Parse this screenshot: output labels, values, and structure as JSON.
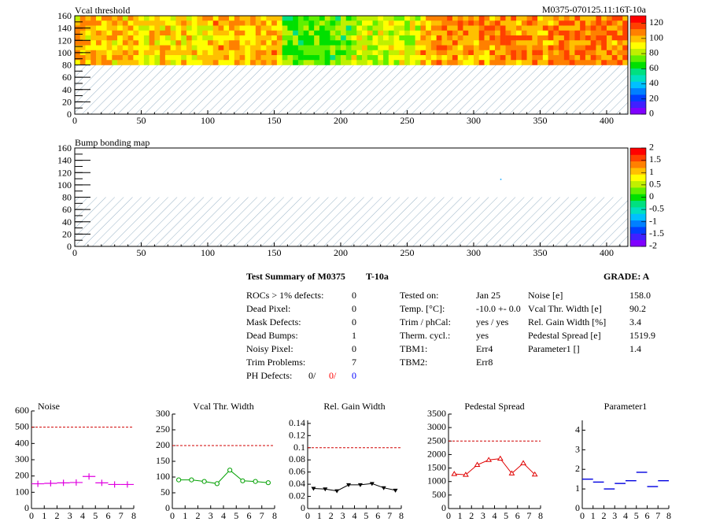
{
  "header_id": "M0375-070125.11:16T-10a",
  "maps": [
    {
      "title": "Vcal threshold",
      "x_ticks": [
        "0",
        "50",
        "100",
        "150",
        "200",
        "250",
        "300",
        "350",
        "400"
      ],
      "y_ticks": [
        "0",
        "20",
        "40",
        "60",
        "80",
        "100",
        "120",
        "140",
        "160"
      ],
      "palette_ticks": [
        "0",
        "20",
        "40",
        "60",
        "80",
        "100",
        "120"
      ],
      "palette_range": [
        0,
        130
      ],
      "roc_means": [
        98,
        94,
        100,
        72,
        86,
        104,
        106,
        108
      ],
      "xlim": [
        0,
        416
      ],
      "ylim": [
        0,
        160
      ]
    },
    {
      "title": "Bump bonding map",
      "x_ticks": [
        "0",
        "50",
        "100",
        "150",
        "200",
        "250",
        "300",
        "350",
        "400"
      ],
      "y_ticks": [
        "0",
        "20",
        "40",
        "60",
        "80",
        "100",
        "120",
        "140",
        "160"
      ],
      "palette_ticks": [
        "-2",
        "-1.5",
        "-1",
        "-0.5",
        "0",
        "0.5",
        "1",
        "1.5",
        "2"
      ],
      "palette_range": [
        -2,
        2
      ],
      "xlim": [
        0,
        416
      ],
      "ylim": [
        0,
        160
      ]
    }
  ],
  "summary": {
    "title": "Test Summary of M0375",
    "temp_label": "T-10a",
    "grade_label": "GRADE:  A",
    "left": [
      {
        "label": "ROCs > 1% defects:",
        "value": "0"
      },
      {
        "label": "Dead Pixel:",
        "value": "0"
      },
      {
        "label": "Mask Defects:",
        "value": "0"
      },
      {
        "label": "Dead Bumps:",
        "value": "1"
      },
      {
        "label": "Noisy Pixel:",
        "value": "0"
      },
      {
        "label": "Trim Problems:",
        "value": "7"
      }
    ],
    "ph_label": "PH Defects:",
    "ph_values": [
      "0/",
      "0/",
      "0"
    ],
    "ph_colors": [
      "#000000",
      "#ff0000",
      "#0000ff"
    ],
    "middle": [
      {
        "label": "Tested on:",
        "value": "Jan 25"
      },
      {
        "label": "Temp. [°C]:",
        "value": "-10.0 +- 0.0"
      },
      {
        "label": "Trim / phCal:",
        "value": "yes / yes"
      },
      {
        "label": "Therm. cycl.:",
        "value": "yes"
      },
      {
        "label": "TBM1:",
        "value": "Err4"
      },
      {
        "label": "TBM2:",
        "value": "Err8"
      }
    ],
    "right": [
      {
        "label": "Noise [e]",
        "value": "158.0"
      },
      {
        "label": "Vcal Thr. Width [e]",
        "value": "90.2"
      },
      {
        "label": "Rel. Gain Width [%]",
        "value": "3.4"
      },
      {
        "label": "Pedestal Spread [e]",
        "value": "1519.9"
      },
      {
        "label": "Parameter1 []",
        "value": "1.4"
      }
    ]
  },
  "chart_data": [
    {
      "type": "scatter",
      "title": "Noise",
      "color": "#e000e0",
      "marker": "cross",
      "x": [
        0.5,
        1.5,
        2.5,
        3.5,
        4.5,
        5.5,
        6.5,
        7.5
      ],
      "values": [
        152,
        155,
        158,
        160,
        197,
        158,
        148,
        148
      ],
      "ylim": [
        0,
        600
      ],
      "y_ticks": [
        "0",
        "100",
        "200",
        "300",
        "400",
        "500",
        "600"
      ],
      "x_ticks": [
        "0",
        "1",
        "2",
        "3",
        "4",
        "5",
        "6",
        "7",
        "8"
      ],
      "threshold": 500,
      "connect": false
    },
    {
      "type": "line",
      "title": "Vcal Thr. Width",
      "color": "#00a000",
      "marker": "circle",
      "x": [
        0.5,
        1.5,
        2.5,
        3.5,
        4.5,
        5.5,
        6.5,
        7.5
      ],
      "values": [
        91,
        91,
        86,
        79,
        122,
        88,
        86,
        82
      ],
      "ylim": [
        0,
        300
      ],
      "y_ticks": [
        "0",
        "50",
        "100",
        "150",
        "200",
        "250",
        "300"
      ],
      "x_ticks": [
        "0",
        "1",
        "2",
        "3",
        "4",
        "5",
        "6",
        "7",
        "8"
      ],
      "threshold": 200,
      "connect": true
    },
    {
      "type": "line",
      "title": "Rel. Gain Width",
      "color": "#000000",
      "marker": "triangle-down",
      "x": [
        0.5,
        1.5,
        2.5,
        3.5,
        4.5,
        5.5,
        6.5,
        7.5
      ],
      "values": [
        0.033,
        0.032,
        0.029,
        0.039,
        0.039,
        0.041,
        0.034,
        0.03
      ],
      "ylim": [
        0,
        0.145
      ],
      "y_ticks": [
        "0",
        "0.02",
        "0.04",
        "0.06",
        "0.08",
        "0.1",
        "0.12",
        "0.14"
      ],
      "y_tick_values": [
        0,
        0.02,
        0.04,
        0.06,
        0.08,
        0.1,
        0.12,
        0.14
      ],
      "x_ticks": [
        "0",
        "1",
        "2",
        "3",
        "4",
        "5",
        "6",
        "7",
        "8"
      ],
      "threshold": 0.1,
      "connect": true
    },
    {
      "type": "line",
      "title": "Pedestal Spread",
      "color": "#e00000",
      "marker": "triangle",
      "x": [
        0.5,
        1.5,
        2.5,
        3.5,
        4.5,
        5.5,
        6.5,
        7.5
      ],
      "values": [
        1280,
        1250,
        1620,
        1800,
        1850,
        1300,
        1680,
        1260
      ],
      "ylim": [
        0,
        3500
      ],
      "y_ticks": [
        "0",
        "500",
        "1000",
        "1500",
        "2000",
        "2500",
        "3000",
        "3500"
      ],
      "x_ticks": [
        "0",
        "1",
        "2",
        "3",
        "4",
        "5",
        "6",
        "7",
        "8"
      ],
      "threshold": 2500,
      "connect": true
    },
    {
      "type": "scatter",
      "title": "Parameter1",
      "color": "#0000e0",
      "marker": "hbar",
      "x": [
        0.5,
        1.5,
        2.5,
        3.5,
        4.5,
        5.5,
        6.5,
        7.5
      ],
      "values": [
        1.5,
        1.35,
        1.0,
        1.28,
        1.42,
        1.85,
        1.12,
        1.42
      ],
      "ylim": [
        0,
        4.5
      ],
      "y_ticks": [
        "0",
        "1",
        "2",
        "3",
        "4"
      ],
      "y_tick_values": [
        0,
        1,
        2,
        3,
        4
      ],
      "x_ticks": [
        "0",
        "1",
        "2",
        "3",
        "4",
        "5",
        "6",
        "7",
        "8"
      ],
      "threshold": null,
      "connect": false
    }
  ]
}
